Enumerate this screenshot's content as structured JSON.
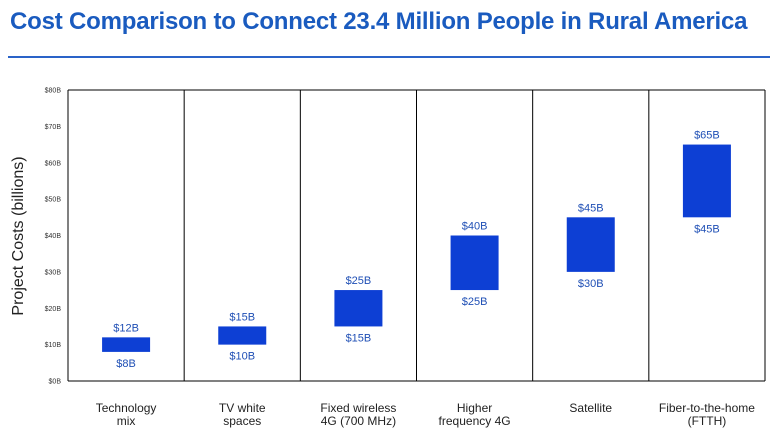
{
  "chart_data": {
    "type": "bar",
    "title": "Cost Comparison to Connect 23.4 Million People in Rural America",
    "ylabel": "Project Costs (billions)",
    "xlabel": "",
    "ylim": [
      0,
      80
    ],
    "yticks": [
      {
        "value": 0,
        "label": "$0B"
      },
      {
        "value": 10,
        "label": "$10B"
      },
      {
        "value": 20,
        "label": "$20B"
      },
      {
        "value": 30,
        "label": "$30B"
      },
      {
        "value": 40,
        "label": "$40B"
      },
      {
        "value": 50,
        "label": "$50B"
      },
      {
        "value": 60,
        "label": "$60B"
      },
      {
        "value": 70,
        "label": "$70B"
      },
      {
        "value": 80,
        "label": "$80B"
      }
    ],
    "grid": "vertical category dividers",
    "bar_color": "#0d3fd4",
    "categories": [
      {
        "lines": [
          "Technology",
          "mix"
        ]
      },
      {
        "lines": [
          "TV white",
          "spaces"
        ]
      },
      {
        "lines": [
          "Fixed wireless",
          "4G (700 MHz)"
        ]
      },
      {
        "lines": [
          "Higher",
          "frequency 4G"
        ]
      },
      {
        "lines": [
          "Satellite"
        ]
      },
      {
        "lines": [
          "Fiber-to-the-home",
          "(FTTH)"
        ]
      }
    ],
    "ranges": [
      {
        "low": 8,
        "high": 12,
        "low_label": "$8B",
        "high_label": "$12B"
      },
      {
        "low": 10,
        "high": 15,
        "low_label": "$10B",
        "high_label": "$15B"
      },
      {
        "low": 15,
        "high": 25,
        "low_label": "$15B",
        "high_label": "$25B"
      },
      {
        "low": 25,
        "high": 40,
        "low_label": "$25B",
        "high_label": "$40B"
      },
      {
        "low": 30,
        "high": 45,
        "low_label": "$30B",
        "high_label": "$45B"
      },
      {
        "low": 45,
        "high": 65,
        "low_label": "$45B",
        "high_label": "$65B"
      }
    ]
  }
}
